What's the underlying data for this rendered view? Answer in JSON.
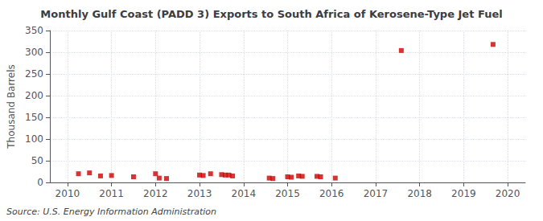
{
  "chart_data": {
    "type": "scatter",
    "title": "Monthly Gulf Coast (PADD 3) Exports to South Africa of Kerosene-Type Jet Fuel",
    "ylabel": "Thousand Barrels",
    "source": "Source: U.S. Energy Information Administration",
    "color": "#cc0000",
    "marker": "square",
    "grid": true,
    "xlim": [
      2009.6,
      2020.4
    ],
    "xticks": [
      2010,
      2011,
      2012,
      2013,
      2014,
      2015,
      2016,
      2017,
      2018,
      2019,
      2020
    ],
    "ylim": [
      0,
      350
    ],
    "yticks": [
      0,
      50,
      100,
      150,
      200,
      250,
      300,
      350
    ],
    "x": [
      2010.25,
      2010.5,
      2010.75,
      2011.0,
      2011.5,
      2012.0,
      2012.083,
      2012.25,
      2013.0,
      2013.083,
      2013.25,
      2013.5,
      2013.583,
      2013.667,
      2013.75,
      2014.583,
      2014.667,
      2015.0,
      2015.083,
      2015.25,
      2015.333,
      2015.667,
      2015.75,
      2016.083,
      2017.583,
      2019.667
    ],
    "values": [
      20,
      22,
      15,
      16,
      13,
      20,
      10,
      9,
      17,
      16,
      20,
      18,
      17,
      17,
      15,
      10,
      9,
      13,
      12,
      15,
      14,
      14,
      13,
      10,
      304,
      318
    ]
  }
}
